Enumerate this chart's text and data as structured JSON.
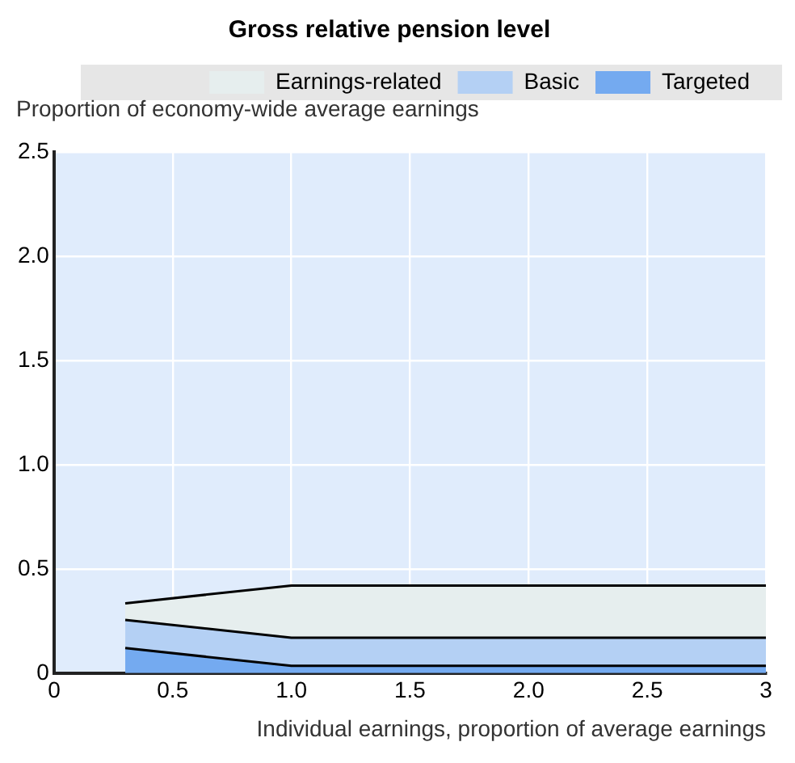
{
  "chart_data": {
    "type": "area",
    "title": "Gross relative pension level",
    "ylabel": "Proportion of economy-wide average earnings",
    "xlabel": "Individual earnings, proportion of average earnings",
    "stacked": true,
    "x": [
      0.3,
      1.0,
      3
    ],
    "series": [
      {
        "name": "Targeted",
        "color": "#74aaf0",
        "values": [
          0.12,
          0.035,
          0.035
        ]
      },
      {
        "name": "Basic",
        "color": "#b4d0f4",
        "values": [
          0.135,
          0.135,
          0.135
        ]
      },
      {
        "name": "Earnings-related",
        "color": "#e6eeee",
        "values": [
          0.08,
          0.25,
          0.25
        ]
      }
    ],
    "xlim": [
      0,
      3
    ],
    "xticks": [
      0,
      0.5,
      {
        "value": 1,
        "label": "1.0"
      },
      1.5,
      {
        "value": 2,
        "label": "2.0"
      },
      2.5,
      3
    ],
    "ylim": [
      0,
      2.5
    ],
    "yticks": [
      0,
      0.5,
      {
        "value": 1,
        "label": "1.0"
      },
      1.5,
      {
        "value": 2,
        "label": "2.0"
      },
      2.5
    ],
    "grid": true,
    "legend": "top"
  }
}
